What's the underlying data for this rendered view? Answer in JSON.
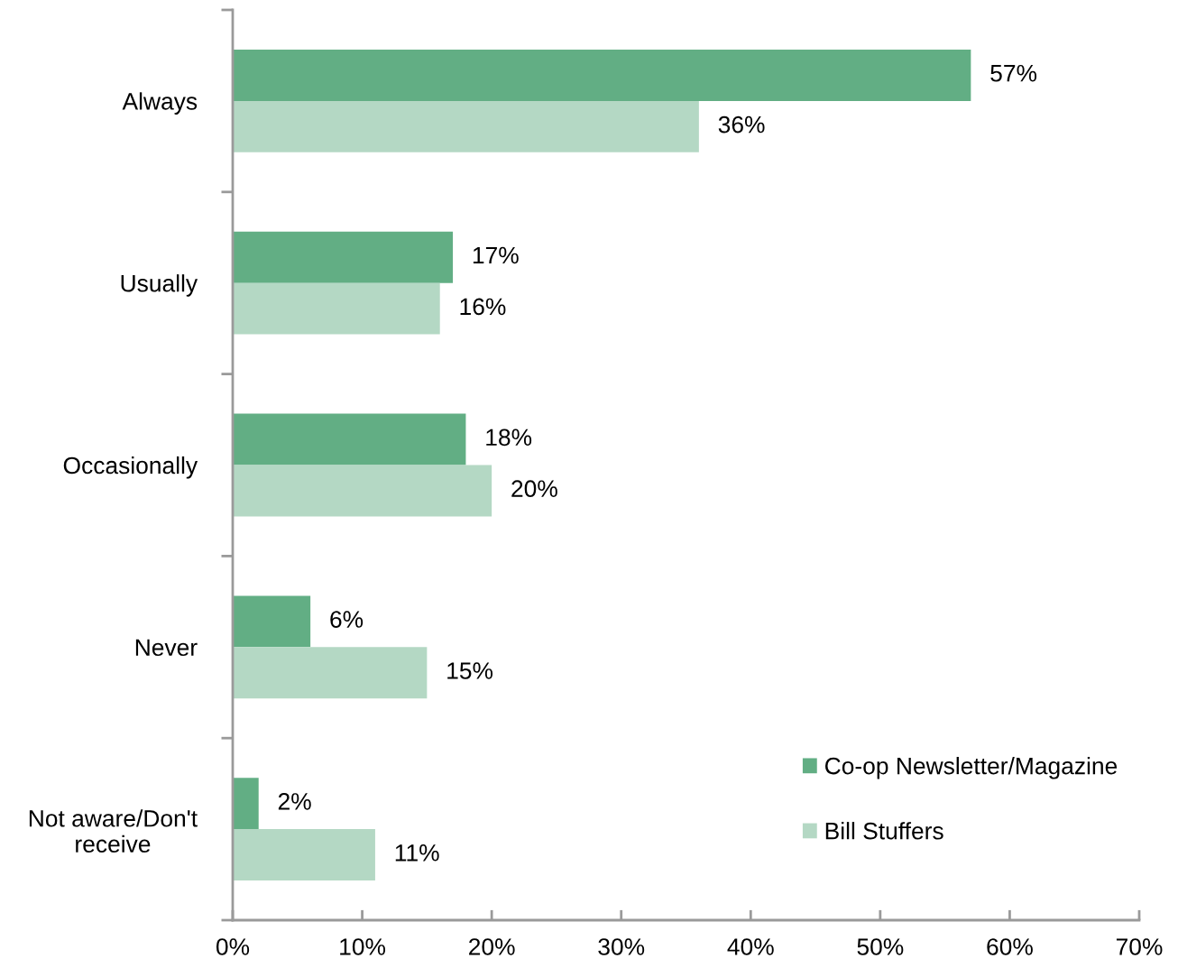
{
  "chart_data": {
    "type": "bar",
    "orientation": "horizontal",
    "categories": [
      "Always",
      "Usually",
      "Occasionally",
      "Never",
      "Not aware/Don't\nreceive"
    ],
    "series": [
      {
        "name": "Co-op Newsletter/Magazine",
        "color": "#62ae84",
        "values": [
          57,
          17,
          18,
          6,
          2
        ],
        "value_labels": [
          "57%",
          "17%",
          "18%",
          "6%",
          "2%"
        ]
      },
      {
        "name": "Bill Stuffers",
        "color": "#b4d8c4",
        "values": [
          36,
          16,
          20,
          15,
          11
        ],
        "value_labels": [
          "36%",
          "16%",
          "20%",
          "15%",
          "11%"
        ]
      }
    ],
    "xlim": [
      0,
      70
    ],
    "xticks": [
      {
        "value": 0,
        "label": "0%"
      },
      {
        "value": 10,
        "label": "10%"
      },
      {
        "value": 20,
        "label": "20%"
      },
      {
        "value": 30,
        "label": "30%"
      },
      {
        "value": 40,
        "label": "40%"
      },
      {
        "value": 50,
        "label": "50%"
      },
      {
        "value": 60,
        "label": "60%"
      },
      {
        "value": 70,
        "label": "70%"
      }
    ],
    "grid": false,
    "legend": "bottom right"
  }
}
